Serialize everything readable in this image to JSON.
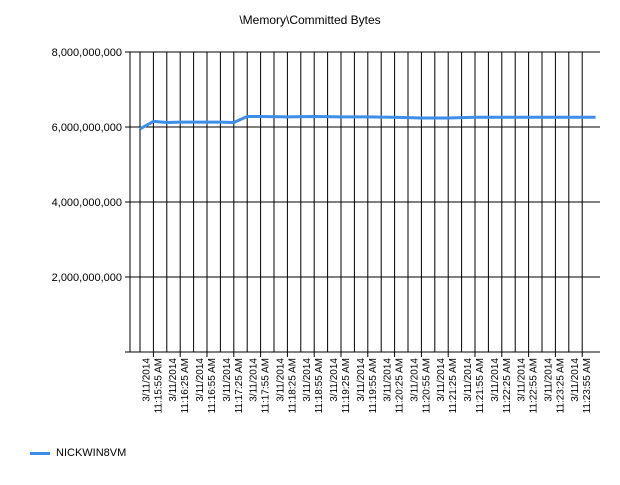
{
  "chart_data": {
    "type": "line",
    "title": "\\Memory\\Committed Bytes",
    "xlabel": "",
    "ylabel": "",
    "ylim": [
      0,
      8000000000
    ],
    "yticks": [
      2000000000,
      4000000000,
      6000000000,
      8000000000
    ],
    "ytick_labels": [
      "2,000,000,000",
      "4,000,000,000",
      "6,000,000,000",
      "8,000,000,000"
    ],
    "x_tick_labels": [
      [
        "3/11/2014",
        "11:15:55 AM"
      ],
      [
        "3/11/2014",
        "11:16:25 AM"
      ],
      [
        "3/11/2014",
        "11:16:55 AM"
      ],
      [
        "3/11/2014",
        "11:17:25 AM"
      ],
      [
        "3/11/2014",
        "11:17:55 AM"
      ],
      [
        "3/11/2014",
        "11:18:25 AM"
      ],
      [
        "3/11/2014",
        "11:18:55 AM"
      ],
      [
        "3/11/2014",
        "11:19:25 AM"
      ],
      [
        "3/11/2014",
        "11:19:55 AM"
      ],
      [
        "3/11/2014",
        "11:20:25 AM"
      ],
      [
        "3/11/2014",
        "11:20:55 AM"
      ],
      [
        "3/11/2014",
        "11:21:25 AM"
      ],
      [
        "3/11/2014",
        "11:21:55 AM"
      ],
      [
        "3/11/2014",
        "11:22:25 AM"
      ],
      [
        "3/11/2014",
        "11:22:55 AM"
      ],
      [
        "3/11/2014",
        "11:23:25 AM"
      ],
      [
        "3/11/2014",
        "11:23:55 AM"
      ]
    ],
    "grid": true,
    "legend_position": "bottom-left",
    "series": [
      {
        "name": "NICKWIN8VM",
        "color": "#3d8ee8",
        "points": [
          [
            "11:15:40",
            5950000000
          ],
          [
            "11:15:55",
            6150000000
          ],
          [
            "11:16:10",
            6120000000
          ],
          [
            "11:16:25",
            6130000000
          ],
          [
            "11:16:40",
            6130000000
          ],
          [
            "11:16:55",
            6130000000
          ],
          [
            "11:17:10",
            6130000000
          ],
          [
            "11:17:25",
            6120000000
          ],
          [
            "11:17:40",
            6280000000
          ],
          [
            "11:17:55",
            6280000000
          ],
          [
            "11:18:25",
            6270000000
          ],
          [
            "11:18:55",
            6280000000
          ],
          [
            "11:19:25",
            6270000000
          ],
          [
            "11:19:55",
            6270000000
          ],
          [
            "11:20:25",
            6260000000
          ],
          [
            "11:20:55",
            6240000000
          ],
          [
            "11:21:25",
            6240000000
          ],
          [
            "11:21:55",
            6260000000
          ],
          [
            "11:22:25",
            6260000000
          ],
          [
            "11:22:55",
            6260000000
          ],
          [
            "11:23:25",
            6260000000
          ],
          [
            "11:23:55",
            6260000000
          ],
          [
            "11:24:10",
            6260000000
          ]
        ]
      }
    ]
  }
}
